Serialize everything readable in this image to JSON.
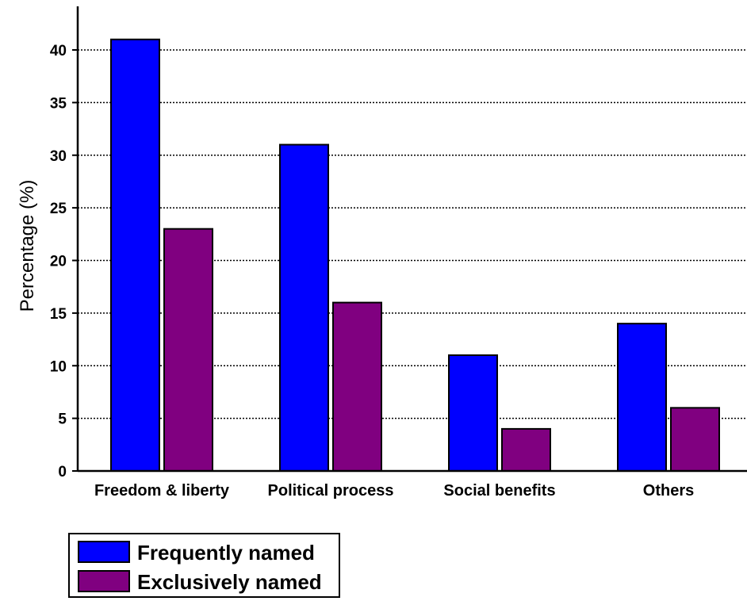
{
  "colors": {
    "frequently": "#0000ff",
    "exclusively": "#800080",
    "grid": "#000000"
  },
  "chart_data": {
    "type": "bar",
    "categories": [
      "Freedom & liberty",
      "Political process",
      "Social benefits",
      "Others"
    ],
    "series": [
      {
        "name": "Frequently named",
        "values": [
          41,
          31,
          11,
          14
        ]
      },
      {
        "name": "Exclusively named",
        "values": [
          23,
          16,
          4,
          6
        ]
      }
    ],
    "title": "",
    "xlabel": "",
    "ylabel": "Percentage (%)",
    "ylim": [
      0,
      45
    ],
    "yticks": [
      0,
      5,
      10,
      15,
      20,
      25,
      30,
      35,
      40
    ],
    "grid": "horizontal dotted",
    "legend": "bottom-left"
  }
}
